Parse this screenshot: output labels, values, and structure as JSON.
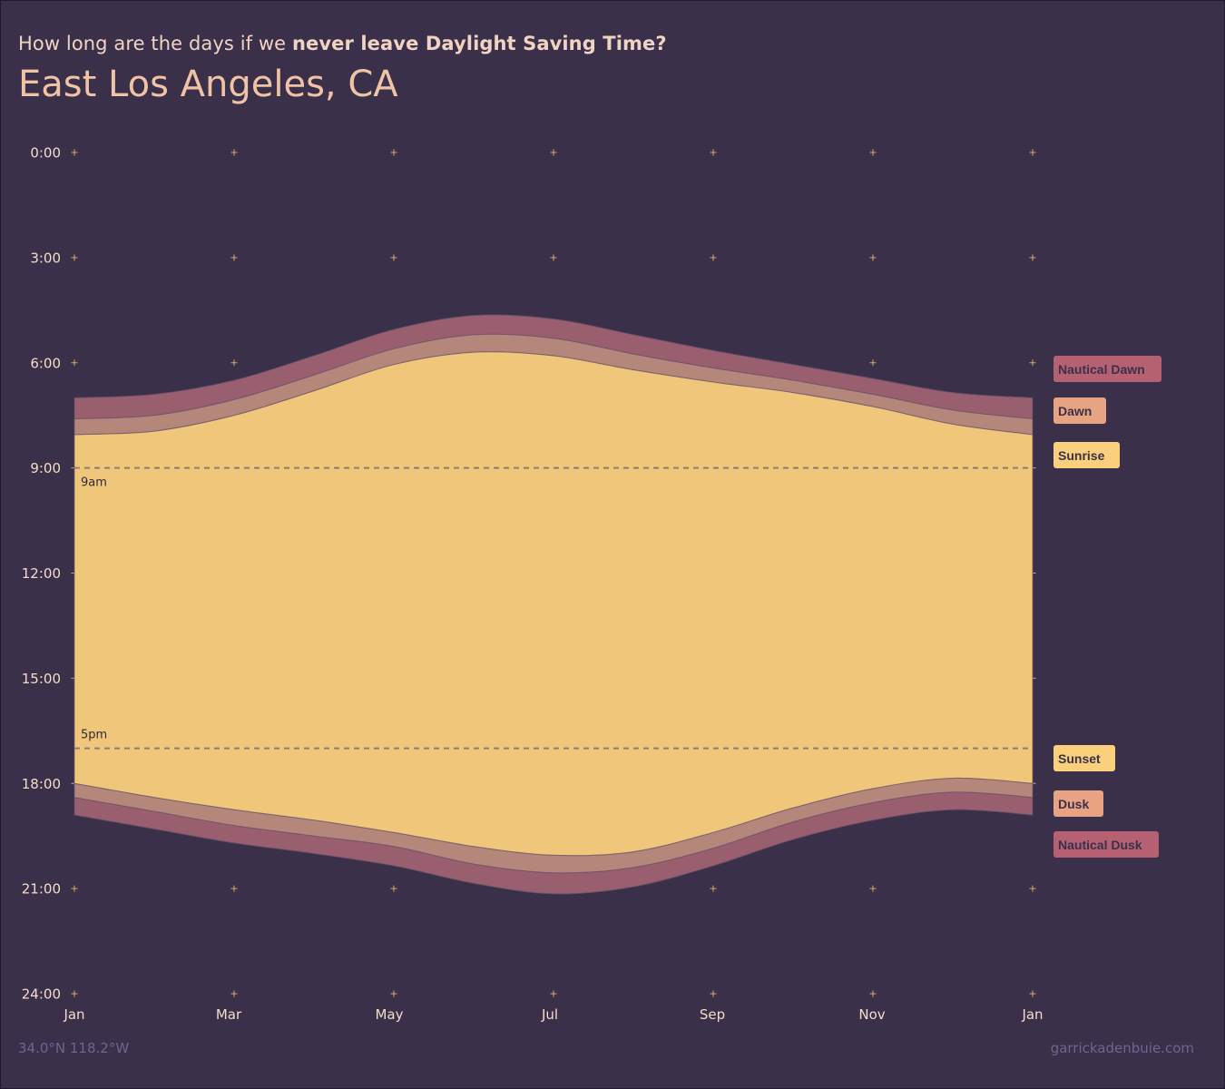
{
  "header": {
    "subtitle_plain": "How long are the days if we ",
    "subtitle_bold": "never leave Daylight Saving Time?",
    "title": "East Los Angeles, CA"
  },
  "footer": {
    "coords": "34.0°N 118.2°W",
    "credit": "garrickadenbuie.com"
  },
  "colors": {
    "background": "#3a3049",
    "nautical": "#9a5f6e",
    "civil": "#b4877a",
    "day": "#efc67a",
    "legend_nautical": "#b56172",
    "legend_civil": "#e8a482",
    "legend_sun": "#fbd07c",
    "grid_plus": "#d9a86a",
    "ref_line": "#8c7f76"
  },
  "chart_data": {
    "type": "area",
    "title": "East Los Angeles, CA",
    "xlabel": "",
    "ylabel": "",
    "x_ticks": [
      "Jan",
      "Mar",
      "May",
      "Jul",
      "Sep",
      "Nov",
      "Jan"
    ],
    "y_ticks": [
      "0:00",
      "3:00",
      "6:00",
      "9:00",
      "12:00",
      "15:00",
      "18:00",
      "21:00",
      "24:00"
    ],
    "ylim": [
      0,
      24
    ],
    "reference_lines": [
      {
        "hour": 9,
        "label": "9am"
      },
      {
        "hour": 17,
        "label": "5pm"
      }
    ],
    "x_month": [
      0,
      1,
      2,
      3,
      4,
      5,
      6,
      7,
      8,
      9,
      10,
      11,
      12
    ],
    "series": [
      {
        "name": "Nautical Dawn",
        "values": [
          7.0,
          6.9,
          6.5,
          5.8,
          5.05,
          4.65,
          4.75,
          5.2,
          5.65,
          6.05,
          6.45,
          6.85,
          7.0
        ]
      },
      {
        "name": "Dawn",
        "values": [
          7.6,
          7.5,
          7.05,
          6.35,
          5.6,
          5.2,
          5.3,
          5.75,
          6.15,
          6.5,
          6.9,
          7.35,
          7.6
        ]
      },
      {
        "name": "Sunrise",
        "values": [
          8.05,
          7.95,
          7.5,
          6.8,
          6.05,
          5.7,
          5.8,
          6.2,
          6.55,
          6.85,
          7.25,
          7.75,
          8.05
        ]
      },
      {
        "name": "Sunset",
        "values": [
          18.0,
          18.4,
          18.75,
          19.05,
          19.4,
          19.8,
          20.05,
          19.95,
          19.4,
          18.7,
          18.15,
          17.85,
          18.0
        ]
      },
      {
        "name": "Dusk",
        "values": [
          18.4,
          18.8,
          19.2,
          19.5,
          19.8,
          20.3,
          20.55,
          20.4,
          19.85,
          19.1,
          18.55,
          18.25,
          18.4
        ]
      },
      {
        "name": "Nautical Dusk",
        "values": [
          18.9,
          19.3,
          19.7,
          20.0,
          20.35,
          20.85,
          21.15,
          20.95,
          20.35,
          19.6,
          19.05,
          18.75,
          18.9
        ]
      }
    ],
    "legend": [
      "Nautical Dawn",
      "Dawn",
      "Sunrise",
      "Sunset",
      "Dusk",
      "Nautical Dusk"
    ],
    "legend_position": "right"
  }
}
